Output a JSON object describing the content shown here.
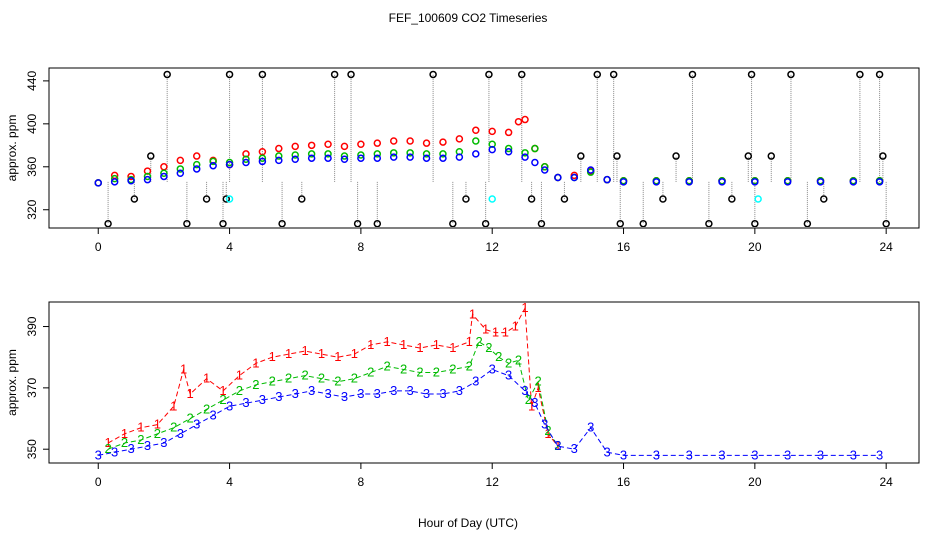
{
  "figure": {
    "title": "FEF_100609  CO2 Timeseries",
    "xlabel": "Hour of Day (UTC)"
  },
  "colors": {
    "raw": "#000000",
    "level1": "#ff0000",
    "level2": "#00bb00",
    "level3": "#0000ff",
    "flag": "#00ffff",
    "vline": "#888888"
  },
  "chart_data": [
    {
      "type": "scatter",
      "name": "top-panel",
      "title": "",
      "xlabel": "",
      "ylabel": "approx. ppm",
      "xlim": [
        -1.5,
        25
      ],
      "ylim": [
        303,
        452
      ],
      "xticks": [
        0,
        4,
        8,
        12,
        16,
        20,
        24
      ],
      "yticks": [
        320,
        360,
        400,
        440
      ],
      "grid": false,
      "marker": "open-circle",
      "series": [
        {
          "id": "level1",
          "color": "#ff0000",
          "x": [
            0.0,
            0.5,
            1.0,
            1.5,
            2.0,
            2.5,
            3.0,
            3.5,
            4.0,
            4.5,
            5.0,
            5.5,
            6.0,
            6.5,
            7.0,
            7.5,
            8.0,
            8.5,
            9.0,
            9.5,
            10.0,
            10.5,
            11.0,
            11.5,
            12.0,
            12.5,
            12.8,
            13.0,
            13.3,
            13.6,
            14.0,
            14.5,
            15.0,
            15.5,
            16.0,
            17.0,
            18.0,
            19.0,
            20.0,
            21.0,
            22.0,
            23.0,
            23.8
          ],
          "y": [
            345,
            352,
            351,
            356,
            360,
            366,
            370,
            366,
            362,
            372,
            374,
            377,
            379,
            380,
            381,
            379,
            381,
            382,
            384,
            384,
            382,
            383,
            386,
            394,
            393,
            392,
            402,
            404,
            377,
            360,
            350,
            352,
            356,
            348,
            347,
            347,
            347,
            347,
            347,
            347,
            347,
            347,
            347
          ]
        },
        {
          "id": "level2",
          "color": "#00bb00",
          "x": [
            0.0,
            0.5,
            1.0,
            1.5,
            2.0,
            2.5,
            3.0,
            3.5,
            4.0,
            4.5,
            5.0,
            5.5,
            6.0,
            6.5,
            7.0,
            7.5,
            8.0,
            8.5,
            9.0,
            9.5,
            10.0,
            10.5,
            11.0,
            11.5,
            12.0,
            12.5,
            13.0,
            13.3,
            13.6,
            14.0,
            14.5,
            15.0,
            15.5,
            16.0,
            17.0,
            18.0,
            19.0,
            20.0,
            21.0,
            22.0,
            23.0,
            23.8
          ],
          "y": [
            345,
            349,
            348,
            351,
            354,
            358,
            362,
            365,
            364,
            367,
            368,
            370,
            371,
            372,
            372,
            370,
            371,
            372,
            373,
            373,
            372,
            372,
            374,
            384,
            381,
            377,
            373,
            377,
            360,
            350,
            350,
            355,
            348,
            347,
            347,
            347,
            347,
            347,
            347,
            347,
            347,
            347
          ]
        },
        {
          "id": "level3",
          "color": "#0000ff",
          "x": [
            0.0,
            0.5,
            1.0,
            1.5,
            2.0,
            2.5,
            3.0,
            3.5,
            4.0,
            4.5,
            5.0,
            5.5,
            6.0,
            6.5,
            7.0,
            7.5,
            8.0,
            8.5,
            9.0,
            9.5,
            10.0,
            10.5,
            11.0,
            11.5,
            12.0,
            12.5,
            13.0,
            13.3,
            13.6,
            14.0,
            14.5,
            15.0,
            15.5,
            16.0,
            17.0,
            18.0,
            19.0,
            20.0,
            21.0,
            22.0,
            23.0,
            23.8
          ],
          "y": [
            345,
            346,
            347,
            348,
            351,
            354,
            358,
            361,
            362,
            364,
            365,
            366,
            367,
            368,
            368,
            367,
            368,
            368,
            369,
            369,
            368,
            368,
            369,
            372,
            376,
            374,
            369,
            364,
            357,
            350,
            350,
            357,
            348,
            346,
            346,
            346,
            346,
            346,
            346,
            346,
            346,
            346
          ]
        },
        {
          "id": "raw-spikes",
          "color": "#000000",
          "x": [
            0.3,
            1.1,
            1.6,
            2.1,
            2.7,
            3.3,
            3.8,
            3.9,
            4.0,
            5.0,
            5.6,
            6.2,
            7.2,
            7.7,
            7.9,
            8.5,
            10.2,
            10.8,
            11.2,
            11.8,
            11.9,
            12.9,
            13.2,
            13.5,
            14.2,
            14.7,
            15.2,
            15.7,
            15.8,
            15.9,
            16.6,
            17.2,
            17.6,
            18.1,
            18.6,
            19.3,
            19.8,
            19.9,
            20.0,
            20.5,
            21.1,
            21.6,
            22.1,
            23.2,
            23.8,
            23.9,
            24.0
          ],
          "y": [
            307,
            330,
            370,
            446,
            307,
            330,
            307,
            330,
            446,
            446,
            307,
            330,
            446,
            446,
            307,
            307,
            446,
            307,
            330,
            307,
            446,
            446,
            330,
            307,
            330,
            370,
            446,
            446,
            370,
            307,
            307,
            330,
            370,
            446,
            307,
            330,
            370,
            446,
            307,
            370,
            446,
            307,
            330,
            446,
            446,
            370,
            307
          ]
        },
        {
          "id": "flagged",
          "color": "#00ffff",
          "x": [
            4.0,
            12.0,
            20.1
          ],
          "y": [
            330,
            330,
            330
          ]
        }
      ]
    },
    {
      "type": "line",
      "name": "bottom-panel",
      "title": "",
      "xlabel": "",
      "ylabel": "approx. ppm",
      "xlim": [
        -1.5,
        25
      ],
      "ylim": [
        345.5,
        398
      ],
      "xticks": [
        0,
        4,
        8,
        12,
        16,
        20,
        24
      ],
      "yticks": [
        350,
        370,
        390
      ],
      "grid": false,
      "series": [
        {
          "id": "level1",
          "symbol": "1",
          "color": "#ff0000",
          "x": [
            0.3,
            0.8,
            1.3,
            1.8,
            2.3,
            2.6,
            2.8,
            3.3,
            3.8,
            4.3,
            4.8,
            5.3,
            5.8,
            6.3,
            6.8,
            7.3,
            7.8,
            8.3,
            8.8,
            9.3,
            9.8,
            10.3,
            10.8,
            11.3,
            11.4,
            11.8,
            12.1,
            12.4,
            12.7,
            13.0,
            13.2,
            13.4,
            13.7,
            14.0
          ],
          "y": [
            352,
            355,
            357,
            358,
            364,
            376,
            368,
            373,
            369,
            374,
            378,
            380,
            381,
            382,
            381,
            380,
            381,
            384,
            385,
            384,
            383,
            384,
            383,
            385,
            394,
            389,
            388,
            388,
            390,
            396,
            364,
            370,
            355,
            351
          ]
        },
        {
          "id": "level2",
          "symbol": "2",
          "color": "#00bb00",
          "x": [
            0.3,
            0.8,
            1.3,
            1.8,
            2.3,
            2.8,
            3.3,
            3.8,
            4.3,
            4.8,
            5.3,
            5.8,
            6.3,
            6.8,
            7.3,
            7.8,
            8.3,
            8.8,
            9.3,
            9.8,
            10.3,
            10.8,
            11.3,
            11.6,
            11.9,
            12.2,
            12.5,
            12.8,
            13.1,
            13.4,
            13.7,
            14.0
          ],
          "y": [
            350,
            352,
            353,
            355,
            357,
            360,
            363,
            366,
            369,
            371,
            372,
            373,
            374,
            373,
            372,
            373,
            375,
            377,
            376,
            375,
            375,
            376,
            377,
            385,
            383,
            380,
            378,
            379,
            366,
            372,
            356,
            351
          ]
        },
        {
          "id": "level3",
          "symbol": "3",
          "color": "#0000ff",
          "x": [
            0.0,
            0.5,
            1.0,
            1.5,
            2.0,
            2.5,
            3.0,
            3.5,
            4.0,
            4.5,
            5.0,
            5.5,
            6.0,
            6.5,
            7.0,
            7.5,
            8.0,
            8.5,
            9.0,
            9.5,
            10.0,
            10.5,
            11.0,
            11.5,
            12.0,
            12.5,
            13.0,
            13.3,
            13.6,
            14.0,
            14.5,
            15.0,
            15.5,
            16.0,
            17.0,
            18.0,
            19.0,
            20.0,
            21.0,
            22.0,
            23.0,
            23.8
          ],
          "y": [
            348,
            349,
            350,
            351,
            352,
            355,
            358,
            361,
            364,
            365,
            366,
            367,
            368,
            369,
            368,
            367,
            368,
            368,
            369,
            369,
            368,
            368,
            369,
            372,
            376,
            374,
            369,
            365,
            358,
            351,
            350,
            357,
            349,
            348,
            348,
            348,
            348,
            348,
            348,
            348,
            348,
            348
          ]
        }
      ]
    }
  ]
}
